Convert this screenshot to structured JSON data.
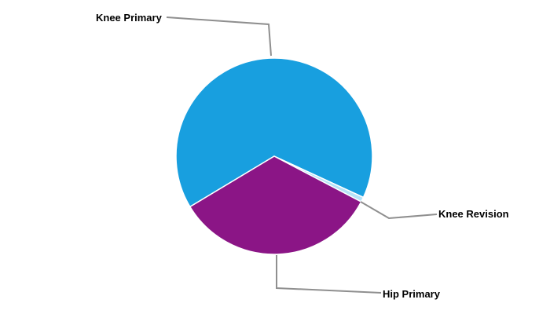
{
  "chart_data": {
    "type": "pie",
    "title": "",
    "slices": [
      {
        "label": "Knee Primary",
        "percent": 65.5,
        "color": "#189FDF"
      },
      {
        "label": "Knee Revision",
        "percent": 0.8,
        "color": "#B5E3F8"
      },
      {
        "label": "Hip Primary",
        "percent": 33.7,
        "color": "#8B1586"
      }
    ],
    "layout": {
      "start_angle_deg": 211,
      "direction": "clockwise",
      "legend": "none",
      "labels": "outside-with-connectors",
      "separator_color": "#FFFFFF",
      "connector_color": "#8F8F8F",
      "label_color": "#000000",
      "background": "#FFFFFF"
    }
  }
}
